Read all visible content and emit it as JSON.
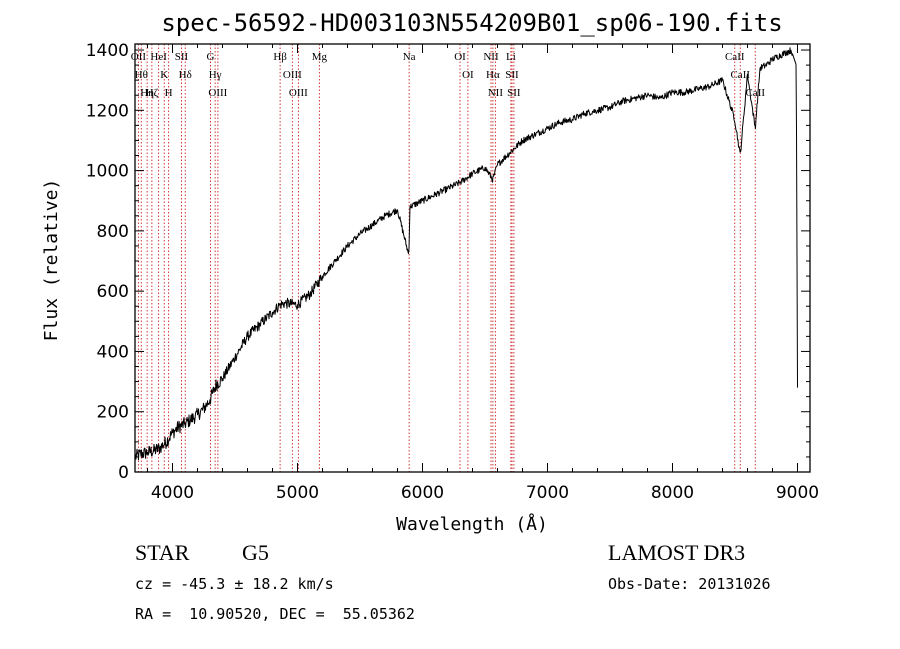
{
  "chart_data": {
    "type": "line",
    "title": "spec-56592-HD003103N554209B01_sp06-190.fits",
    "xlabel": "Wavelength (Å)",
    "ylabel": "Flux (relative)",
    "xlim": [
      3700,
      9100
    ],
    "ylim": [
      0,
      1420
    ],
    "xticks": [
      4000,
      5000,
      6000,
      7000,
      8000,
      9000
    ],
    "yticks": [
      0,
      200,
      400,
      600,
      800,
      1000,
      1200,
      1400
    ],
    "grid": false,
    "series": [
      {
        "name": "flux",
        "x": [
          3700,
          3750,
          3800,
          3850,
          3900,
          3950,
          4000,
          4050,
          4100,
          4150,
          4200,
          4250,
          4300,
          4350,
          4400,
          4500,
          4600,
          4700,
          4800,
          4860,
          4900,
          5000,
          5100,
          5200,
          5300,
          5400,
          5500,
          5600,
          5700,
          5800,
          5890,
          5900,
          6000,
          6100,
          6200,
          6300,
          6400,
          6500,
          6563,
          6600,
          6700,
          6800,
          6900,
          7000,
          7100,
          7200,
          7300,
          7400,
          7500,
          7600,
          7700,
          7800,
          7900,
          8000,
          8100,
          8200,
          8300,
          8400,
          8498,
          8542,
          8600,
          8662,
          8700,
          8750,
          8800,
          8850,
          8900,
          8950,
          8990,
          9000
        ],
        "y": [
          50,
          60,
          65,
          70,
          80,
          100,
          130,
          150,
          160,
          175,
          190,
          210,
          240,
          290,
          310,
          380,
          450,
          490,
          530,
          555,
          560,
          555,
          590,
          650,
          700,
          750,
          790,
          820,
          850,
          870,
          720,
          880,
          900,
          920,
          940,
          960,
          990,
          1010,
          970,
          1020,
          1060,
          1100,
          1120,
          1140,
          1160,
          1170,
          1190,
          1200,
          1210,
          1230,
          1240,
          1250,
          1240,
          1260,
          1260,
          1270,
          1280,
          1300,
          1170,
          1050,
          1320,
          1140,
          1340,
          1350,
          1370,
          1380,
          1390,
          1400,
          1350,
          280
        ]
      }
    ],
    "lines": [
      {
        "wavelength": 3727,
        "labels": [
          "OII"
        ]
      },
      {
        "wavelength": 3750,
        "labels": [
          "Hθ"
        ]
      },
      {
        "wavelength": 3797,
        "labels": [
          "Hη"
        ]
      },
      {
        "wavelength": 3835,
        "labels": [
          "Hζ"
        ]
      },
      {
        "wavelength": 3889,
        "labels": [
          "HeI"
        ]
      },
      {
        "wavelength": 3934,
        "labels": [
          "K"
        ]
      },
      {
        "wavelength": 3969,
        "labels": [
          "H"
        ]
      },
      {
        "wavelength": 4072,
        "labels": [
          "SII"
        ]
      },
      {
        "wavelength": 4102,
        "labels": [
          "Hδ"
        ]
      },
      {
        "wavelength": 4304,
        "labels": [
          "G"
        ]
      },
      {
        "wavelength": 4341,
        "labels": [
          "Hγ"
        ]
      },
      {
        "wavelength": 4363,
        "labels": [
          "OIII"
        ]
      },
      {
        "wavelength": 4861,
        "labels": [
          "Hβ"
        ]
      },
      {
        "wavelength": 4959,
        "labels": [
          "OIII"
        ]
      },
      {
        "wavelength": 5007,
        "labels": [
          "OIII"
        ]
      },
      {
        "wavelength": 5175,
        "labels": [
          "Mg"
        ]
      },
      {
        "wavelength": 5893,
        "labels": [
          "Na"
        ]
      },
      {
        "wavelength": 6300,
        "labels": [
          "OI"
        ]
      },
      {
        "wavelength": 6363,
        "labels": [
          "OI"
        ]
      },
      {
        "wavelength": 6548,
        "labels": [
          "NII"
        ]
      },
      {
        "wavelength": 6563,
        "labels": [
          "Hα"
        ]
      },
      {
        "wavelength": 6583,
        "labels": [
          "NII"
        ]
      },
      {
        "wavelength": 6707,
        "labels": [
          "Li"
        ]
      },
      {
        "wavelength": 6716,
        "labels": [
          "SII"
        ]
      },
      {
        "wavelength": 6731,
        "labels": [
          "SII"
        ]
      },
      {
        "wavelength": 8498,
        "labels": [
          "CaII"
        ]
      },
      {
        "wavelength": 8542,
        "labels": [
          "CaII"
        ]
      },
      {
        "wavelength": 8662,
        "labels": [
          "CaII"
        ]
      }
    ]
  },
  "info": {
    "class_label": "STAR",
    "subclass": "G5",
    "survey": "LAMOST DR3",
    "cz_line": "cz = -45.3 ± 18.2 km/s",
    "obs_date_line": "Obs-Date: 20131026",
    "radec_line": "RA =  10.90520, DEC =  55.05362"
  },
  "colors": {
    "line_marker": "#cc2222",
    "spectrum": "#000000",
    "axes": "#000000",
    "background": "#ffffff"
  }
}
